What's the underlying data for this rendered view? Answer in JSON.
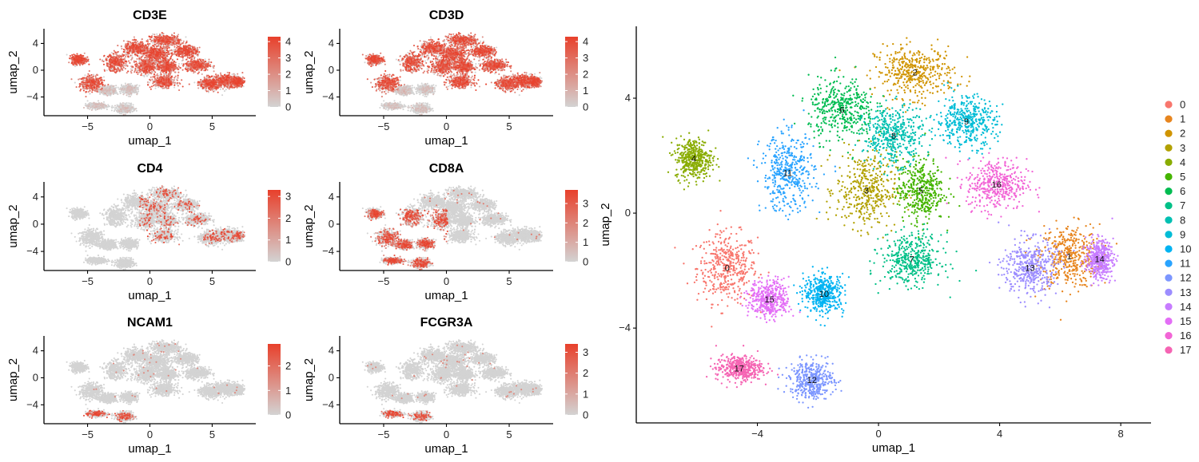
{
  "chart_data": [
    {
      "type": "scatter",
      "title": "CD3E",
      "xlabel": "umap_1",
      "ylabel": "umap_2",
      "xticks": [
        -5,
        0,
        5
      ],
      "yticks": [
        4,
        0,
        -4
      ],
      "xlim": [
        -8.5,
        8.5
      ],
      "ylim": [
        -6.8,
        6.2
      ],
      "colorbar_ticks": [
        "4",
        "3",
        "2",
        "1",
        "0"
      ],
      "colorbar_max": 4.3,
      "color_low": "#d3d3d3",
      "color_high": "#e8402b",
      "expression_pattern": "broad-high"
    },
    {
      "type": "scatter",
      "title": "CD3D",
      "xlabel": "umap_1",
      "ylabel": "umap_2",
      "xticks": [
        -5,
        0,
        5
      ],
      "yticks": [
        4,
        0,
        -4
      ],
      "xlim": [
        -8.5,
        8.5
      ],
      "ylim": [
        -6.8,
        6.2
      ],
      "colorbar_ticks": [
        "4",
        "3",
        "2",
        "1",
        "0"
      ],
      "colorbar_max": 4.3,
      "color_low": "#d3d3d3",
      "color_high": "#e8402b",
      "expression_pattern": "broad-high"
    },
    {
      "type": "scatter",
      "title": "CD4",
      "xlabel": "umap_1",
      "ylabel": "umap_2",
      "xticks": [
        -5,
        0,
        5
      ],
      "yticks": [
        4,
        0,
        -4
      ],
      "xlim": [
        -8.5,
        8.5
      ],
      "ylim": [
        -6.8,
        6.2
      ],
      "colorbar_ticks": [
        "3",
        "2",
        "1",
        "0"
      ],
      "colorbar_max": 3.3,
      "color_low": "#d3d3d3",
      "color_high": "#e8402b",
      "expression_pattern": "sparse-right"
    },
    {
      "type": "scatter",
      "title": "CD8A",
      "xlabel": "umap_1",
      "ylabel": "umap_2",
      "xticks": [
        -5,
        0,
        5
      ],
      "yticks": [
        4,
        0,
        -4
      ],
      "xlim": [
        -8.5,
        8.5
      ],
      "ylim": [
        -6.8,
        6.2
      ],
      "colorbar_ticks": [
        "3",
        "2",
        "1",
        "0"
      ],
      "colorbar_max": 3.7,
      "color_low": "#d3d3d3",
      "color_high": "#e8402b",
      "expression_pattern": "left-lobe"
    },
    {
      "type": "scatter",
      "title": "NCAM1",
      "xlabel": "umap_1",
      "ylabel": "umap_2",
      "xticks": [
        -5,
        0,
        5
      ],
      "yticks": [
        4,
        0,
        -4
      ],
      "xlim": [
        -8.5,
        8.5
      ],
      "ylim": [
        -6.8,
        6.2
      ],
      "colorbar_ticks": [
        "2",
        "1",
        "0"
      ],
      "colorbar_max": 2.9,
      "color_low": "#d3d3d3",
      "color_high": "#e8402b",
      "expression_pattern": "rare-bottom"
    },
    {
      "type": "scatter",
      "title": "FCGR3A",
      "xlabel": "umap_1",
      "ylabel": "umap_2",
      "xticks": [
        -5,
        0,
        5
      ],
      "yticks": [
        4,
        0,
        -4
      ],
      "xlim": [
        -8.5,
        8.5
      ],
      "ylim": [
        -6.8,
        6.2
      ],
      "colorbar_ticks": [
        "3",
        "2",
        "1",
        "0"
      ],
      "colorbar_max": 3.4,
      "color_low": "#d3d3d3",
      "color_high": "#e8402b",
      "expression_pattern": "rare-bottom"
    },
    {
      "type": "scatter",
      "title": "",
      "xlabel": "umap_1",
      "ylabel": "umap_2",
      "xticks": [
        -4,
        0,
        4,
        8
      ],
      "yticks": [
        4,
        0,
        -4
      ],
      "xlim": [
        -8.0,
        9.0
      ],
      "ylim": [
        -7.3,
        6.5
      ],
      "legend_position": "right",
      "clusters": [
        {
          "label": "0",
          "color": "#F8766D",
          "center": [
            -5.0,
            -1.9
          ],
          "spread": [
            0.9,
            1.1
          ]
        },
        {
          "label": "1",
          "color": "#E7851E",
          "center": [
            6.3,
            -1.5
          ],
          "spread": [
            0.9,
            1.0
          ]
        },
        {
          "label": "2",
          "color": "#D09400",
          "center": [
            1.2,
            4.9
          ],
          "spread": [
            1.2,
            0.8
          ]
        },
        {
          "label": "3",
          "color": "#B2A100",
          "center": [
            -0.4,
            0.8
          ],
          "spread": [
            0.9,
            1.2
          ]
        },
        {
          "label": "4",
          "color": "#89AC00",
          "center": [
            -6.1,
            1.9
          ],
          "spread": [
            0.55,
            0.65
          ]
        },
        {
          "label": "5",
          "color": "#45B500",
          "center": [
            1.4,
            0.8
          ],
          "spread": [
            0.7,
            1.0
          ]
        },
        {
          "label": "6",
          "color": "#00BC51",
          "center": [
            -1.2,
            3.6
          ],
          "spread": [
            1.0,
            1.0
          ]
        },
        {
          "label": "7",
          "color": "#00C087",
          "center": [
            1.1,
            -1.6
          ],
          "spread": [
            0.9,
            0.8
          ]
        },
        {
          "label": "8",
          "color": "#00C0B2",
          "center": [
            0.5,
            2.7
          ],
          "spread": [
            0.9,
            0.9
          ]
        },
        {
          "label": "9",
          "color": "#00BCD6",
          "center": [
            2.9,
            3.2
          ],
          "spread": [
            0.9,
            0.8
          ]
        },
        {
          "label": "10",
          "color": "#00B3F2",
          "center": [
            -1.8,
            -2.8
          ],
          "spread": [
            0.6,
            0.6
          ]
        },
        {
          "label": "11",
          "color": "#29A3FF",
          "center": [
            -3.0,
            1.4
          ],
          "spread": [
            0.8,
            1.2
          ]
        },
        {
          "label": "12",
          "color": "#7C96FF",
          "center": [
            -2.2,
            -5.8
          ],
          "spread": [
            0.65,
            0.6
          ]
        },
        {
          "label": "13",
          "color": "#9C8DFF",
          "center": [
            5.0,
            -1.9
          ],
          "spread": [
            0.8,
            0.9
          ]
        },
        {
          "label": "14",
          "color": "#C77CFF",
          "center": [
            7.3,
            -1.6
          ],
          "spread": [
            0.4,
            0.6
          ]
        },
        {
          "label": "15",
          "color": "#E36EF6",
          "center": [
            -3.6,
            -3.0
          ],
          "spread": [
            0.6,
            0.6
          ]
        },
        {
          "label": "16",
          "color": "#F265D6",
          "center": [
            3.9,
            1.0
          ],
          "spread": [
            0.9,
            0.8
          ]
        },
        {
          "label": "17",
          "color": "#F564B3",
          "center": [
            -4.6,
            -5.4
          ],
          "spread": [
            0.7,
            0.4
          ]
        }
      ]
    }
  ]
}
